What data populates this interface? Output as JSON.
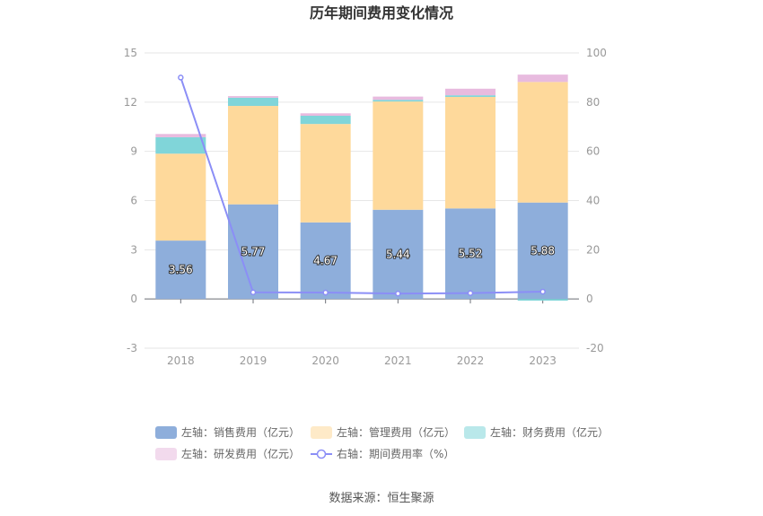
{
  "chart_data": {
    "type": "bar",
    "title": "历年期间费用变化情况",
    "categories": [
      "2018",
      "2019",
      "2020",
      "2021",
      "2022",
      "2023"
    ],
    "y_left": {
      "min": -3,
      "max": 15,
      "ticks": [
        "-3",
        "0",
        "3",
        "6",
        "9",
        "12",
        "15"
      ]
    },
    "y_right": {
      "min": -20,
      "max": 100,
      "ticks": [
        "-20",
        "0",
        "20",
        "40",
        "60",
        "80",
        "100"
      ]
    },
    "series": [
      {
        "name": "左轴：销售费用（亿元）",
        "type": "bar",
        "axis": "left",
        "color": "#8eaedb",
        "values": [
          3.56,
          5.77,
          4.67,
          5.44,
          5.52,
          5.88
        ],
        "labels": [
          "3.56",
          "5.77",
          "4.67",
          "5.44",
          "5.52",
          "5.88"
        ]
      },
      {
        "name": "左轴：管理费用（亿元）",
        "type": "bar",
        "axis": "left",
        "color": "#fed99b",
        "values": [
          5.3,
          6.0,
          6.0,
          6.6,
          6.8,
          7.35
        ]
      },
      {
        "name": "左轴：财务费用（亿元）",
        "type": "bar",
        "axis": "left",
        "color": "#80d5d9",
        "values": [
          1.0,
          0.5,
          0.5,
          0.1,
          0.1,
          -0.1
        ]
      },
      {
        "name": "左轴：研发费用（亿元）",
        "type": "bar",
        "axis": "left",
        "color": "#e8bbdf",
        "values": [
          0.2,
          0.1,
          0.15,
          0.2,
          0.4,
          0.45
        ]
      },
      {
        "name": "右轴：期间费用率（%）",
        "type": "line",
        "axis": "right",
        "color": "#8b8ef6",
        "values": [
          90.0,
          2.7,
          2.6,
          2.2,
          2.4,
          3.0
        ]
      }
    ],
    "legend_position": "bottom",
    "grid": true
  },
  "source_text": "数据来源：恒生聚源"
}
